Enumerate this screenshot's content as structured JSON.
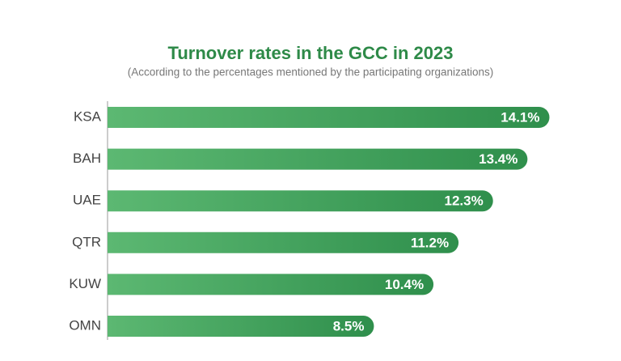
{
  "chart_data": {
    "type": "hbar",
    "title": "Turnover rates in the GCC in 2023",
    "subtitle": "(According to the percentages mentioned by the participating organizations)",
    "categories": [
      "KSA",
      "BAH",
      "UAE",
      "QTR",
      "KUW",
      "OMN"
    ],
    "values": [
      14.1,
      13.4,
      12.3,
      11.2,
      10.4,
      8.5
    ],
    "value_labels": [
      "14.1%",
      "13.4%",
      "12.3%",
      "11.2%",
      "10.4%",
      "8.5%"
    ],
    "color": "#43a35f",
    "xlim": [
      0,
      14.5
    ]
  }
}
